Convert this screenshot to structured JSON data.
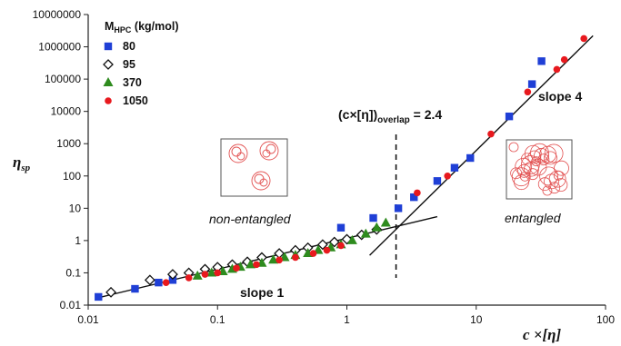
{
  "chart_data": {
    "type": "scatter",
    "xscale": "log",
    "yscale": "log",
    "xlim": [
      0.01,
      100
    ],
    "ylim": [
      0.01,
      10000000
    ],
    "xlabel": "c ×[η]",
    "ylabel": "ηsp",
    "x_tick_labels": [
      "0.01",
      "0.1",
      "1",
      "10",
      "100"
    ],
    "y_tick_labels": [
      "0.01",
      "0.1",
      "1",
      "10",
      "100",
      "1000",
      "10000",
      "100000",
      "1000000",
      "10000000"
    ],
    "legend": {
      "title_main": "M",
      "title_sub": "HPC",
      "title_unit": " (kg/mol)",
      "placement": "top-left"
    },
    "series": [
      {
        "name": "80",
        "marker": "square",
        "color": "#1f3fd6",
        "points": [
          [
            0.012,
            0.018
          ],
          [
            0.023,
            0.032
          ],
          [
            0.035,
            0.05
          ],
          [
            0.045,
            0.06
          ],
          [
            0.9,
            2.5
          ],
          [
            1.6,
            5.0
          ],
          [
            2.5,
            10
          ],
          [
            3.3,
            22
          ],
          [
            5.0,
            70
          ],
          [
            6.8,
            180
          ],
          [
            9.0,
            360
          ],
          [
            18,
            7000
          ],
          [
            27,
            70000
          ],
          [
            32,
            360000
          ]
        ]
      },
      {
        "name": "95",
        "marker": "diamond",
        "color": "#111111",
        "points": [
          [
            0.015,
            0.025
          ],
          [
            0.03,
            0.06
          ],
          [
            0.045,
            0.09
          ],
          [
            0.06,
            0.1
          ],
          [
            0.08,
            0.13
          ],
          [
            0.1,
            0.15
          ],
          [
            0.13,
            0.18
          ],
          [
            0.17,
            0.22
          ],
          [
            0.22,
            0.3
          ],
          [
            0.3,
            0.4
          ],
          [
            0.4,
            0.5
          ],
          [
            0.5,
            0.6
          ],
          [
            0.65,
            0.75
          ],
          [
            0.8,
            0.9
          ],
          [
            1.0,
            1.1
          ],
          [
            1.3,
            1.5
          ],
          [
            1.7,
            2.2
          ]
        ]
      },
      {
        "name": "370",
        "marker": "triangle",
        "color": "#2e8b1e",
        "points": [
          [
            0.07,
            0.08
          ],
          [
            0.09,
            0.1
          ],
          [
            0.11,
            0.11
          ],
          [
            0.13,
            0.13
          ],
          [
            0.15,
            0.15
          ],
          [
            0.18,
            0.18
          ],
          [
            0.22,
            0.2
          ],
          [
            0.27,
            0.25
          ],
          [
            0.33,
            0.3
          ],
          [
            0.4,
            0.35
          ],
          [
            0.5,
            0.4
          ],
          [
            0.6,
            0.5
          ],
          [
            0.75,
            0.6
          ],
          [
            0.9,
            0.75
          ],
          [
            1.1,
            1.0
          ],
          [
            1.4,
            1.6
          ],
          [
            1.7,
            2.5
          ],
          [
            2.0,
            3.5
          ]
        ]
      },
      {
        "name": "1050",
        "marker": "circle",
        "color": "#e8191e",
        "points": [
          [
            0.04,
            0.05
          ],
          [
            0.06,
            0.07
          ],
          [
            0.08,
            0.09
          ],
          [
            0.1,
            0.1
          ],
          [
            0.14,
            0.14
          ],
          [
            0.2,
            0.18
          ],
          [
            0.3,
            0.25
          ],
          [
            0.4,
            0.3
          ],
          [
            0.55,
            0.4
          ],
          [
            0.7,
            0.5
          ],
          [
            0.9,
            0.7
          ],
          [
            3.5,
            30
          ],
          [
            6.0,
            100
          ],
          [
            13,
            2000
          ],
          [
            25,
            40000
          ],
          [
            42,
            200000
          ],
          [
            48,
            400000
          ],
          [
            68,
            1800000
          ]
        ]
      }
    ],
    "fit_lines": [
      {
        "label": "slope 1",
        "from": [
          0.012,
          0.017
        ],
        "to": [
          5.0,
          5.5
        ]
      },
      {
        "label": "slope 4",
        "from": [
          1.5,
          0.35
        ],
        "to": [
          80,
          2200000
        ]
      }
    ],
    "overlap": {
      "prefix": "(c×[η])",
      "subscript": "overlap",
      "suffix": " = 2.4",
      "x": 2.4
    },
    "annotations": {
      "slope1": "slope 1",
      "slope4": "slope 4",
      "non_entangled": "non-entangled",
      "entangled": "entangled"
    }
  }
}
